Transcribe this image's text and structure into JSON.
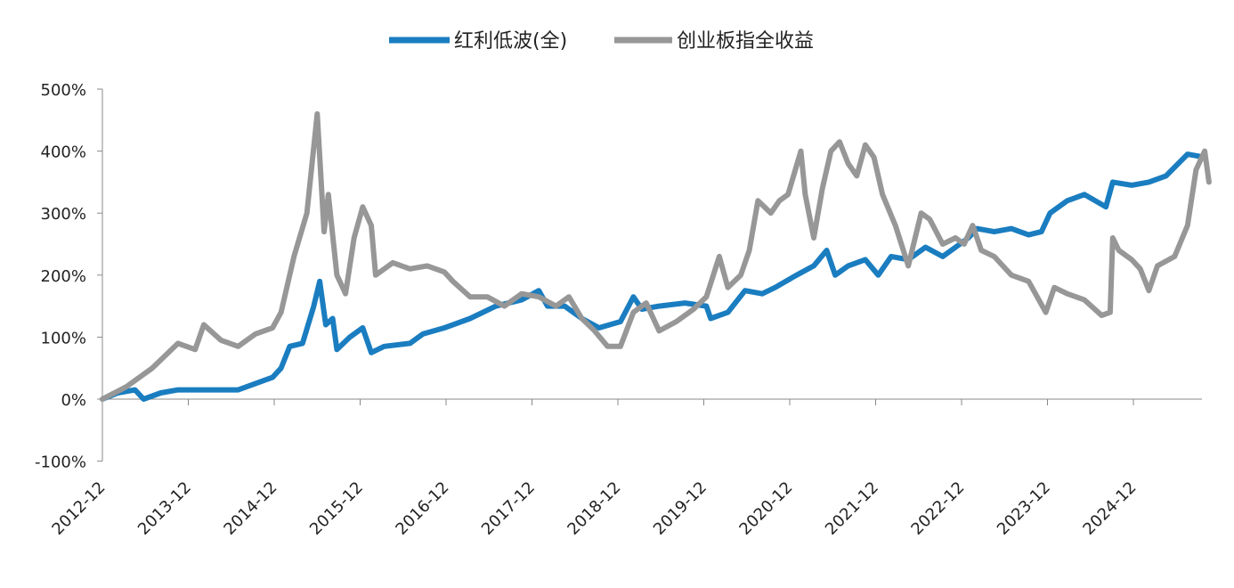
{
  "chart_data": {
    "type": "line",
    "title": "",
    "xlabel": "",
    "ylabel": "",
    "ylim": [
      -100,
      500
    ],
    "xlim": [
      2012.92,
      2025.8
    ],
    "yticks": [
      500,
      400,
      300,
      200,
      100,
      0,
      -100
    ],
    "ytick_labels": [
      "500%",
      "400%",
      "300%",
      "200%",
      "100%",
      "0%",
      "-100%"
    ],
    "xticks": [
      2012.92,
      2013.92,
      2014.92,
      2015.92,
      2016.92,
      2017.92,
      2018.92,
      2019.92,
      2020.92,
      2021.92,
      2022.92,
      2023.92,
      2024.92
    ],
    "xtick_labels": [
      "2012-12",
      "2013-12",
      "2014-12",
      "2015-12",
      "2016-12",
      "2017-12",
      "2018-12",
      "2019-12",
      "2020-12",
      "2021-12",
      "2022-12",
      "2023-12",
      "2024-12"
    ],
    "legend_position": "top-center",
    "grid": false,
    "series": [
      {
        "name": "红利低波(全)",
        "color": "#1a7dc0",
        "points": [
          [
            2012.92,
            0
          ],
          [
            2013.1,
            10
          ],
          [
            2013.3,
            15
          ],
          [
            2013.4,
            0
          ],
          [
            2013.6,
            10
          ],
          [
            2013.8,
            15
          ],
          [
            2014.0,
            15
          ],
          [
            2014.3,
            15
          ],
          [
            2014.5,
            15
          ],
          [
            2014.7,
            25
          ],
          [
            2014.9,
            35
          ],
          [
            2015.0,
            50
          ],
          [
            2015.1,
            85
          ],
          [
            2015.25,
            90
          ],
          [
            2015.38,
            150
          ],
          [
            2015.45,
            190
          ],
          [
            2015.52,
            120
          ],
          [
            2015.6,
            130
          ],
          [
            2015.65,
            80
          ],
          [
            2015.8,
            100
          ],
          [
            2015.95,
            115
          ],
          [
            2016.05,
            75
          ],
          [
            2016.2,
            85
          ],
          [
            2016.5,
            90
          ],
          [
            2016.65,
            105
          ],
          [
            2016.9,
            115
          ],
          [
            2017.2,
            130
          ],
          [
            2017.5,
            150
          ],
          [
            2017.8,
            160
          ],
          [
            2018.0,
            175
          ],
          [
            2018.1,
            150
          ],
          [
            2018.3,
            150
          ],
          [
            2018.5,
            130
          ],
          [
            2018.7,
            115
          ],
          [
            2018.95,
            125
          ],
          [
            2019.1,
            165
          ],
          [
            2019.2,
            145
          ],
          [
            2019.4,
            150
          ],
          [
            2019.7,
            155
          ],
          [
            2019.95,
            150
          ],
          [
            2020.0,
            130
          ],
          [
            2020.2,
            140
          ],
          [
            2020.4,
            175
          ],
          [
            2020.6,
            170
          ],
          [
            2020.75,
            180
          ],
          [
            2021.0,
            200
          ],
          [
            2021.2,
            215
          ],
          [
            2021.35,
            240
          ],
          [
            2021.45,
            200
          ],
          [
            2021.6,
            215
          ],
          [
            2021.8,
            225
          ],
          [
            2021.95,
            200
          ],
          [
            2022.1,
            230
          ],
          [
            2022.3,
            225
          ],
          [
            2022.5,
            245
          ],
          [
            2022.7,
            230
          ],
          [
            2022.9,
            250
          ],
          [
            2023.0,
            260
          ],
          [
            2023.1,
            275
          ],
          [
            2023.3,
            270
          ],
          [
            2023.5,
            275
          ],
          [
            2023.7,
            265
          ],
          [
            2023.85,
            270
          ],
          [
            2023.95,
            300
          ],
          [
            2024.15,
            320
          ],
          [
            2024.35,
            330
          ],
          [
            2024.6,
            310
          ],
          [
            2024.68,
            350
          ],
          [
            2024.9,
            345
          ],
          [
            2025.1,
            350
          ],
          [
            2025.3,
            360
          ],
          [
            2025.55,
            395
          ],
          [
            2025.75,
            390
          ]
        ]
      },
      {
        "name": "创业板指全收益",
        "color": "#979797",
        "points": [
          [
            2012.92,
            0
          ],
          [
            2013.2,
            20
          ],
          [
            2013.5,
            50
          ],
          [
            2013.8,
            90
          ],
          [
            2014.0,
            80
          ],
          [
            2014.1,
            120
          ],
          [
            2014.3,
            95
          ],
          [
            2014.5,
            85
          ],
          [
            2014.7,
            105
          ],
          [
            2014.9,
            115
          ],
          [
            2015.0,
            140
          ],
          [
            2015.15,
            230
          ],
          [
            2015.3,
            300
          ],
          [
            2015.42,
            460
          ],
          [
            2015.5,
            270
          ],
          [
            2015.55,
            330
          ],
          [
            2015.65,
            200
          ],
          [
            2015.75,
            170
          ],
          [
            2015.85,
            260
          ],
          [
            2015.95,
            310
          ],
          [
            2016.05,
            280
          ],
          [
            2016.1,
            200
          ],
          [
            2016.3,
            220
          ],
          [
            2016.5,
            210
          ],
          [
            2016.7,
            215
          ],
          [
            2016.9,
            205
          ],
          [
            2017.0,
            190
          ],
          [
            2017.2,
            165
          ],
          [
            2017.4,
            165
          ],
          [
            2017.6,
            150
          ],
          [
            2017.8,
            170
          ],
          [
            2018.0,
            165
          ],
          [
            2018.2,
            150
          ],
          [
            2018.35,
            165
          ],
          [
            2018.5,
            130
          ],
          [
            2018.65,
            110
          ],
          [
            2018.8,
            85
          ],
          [
            2018.95,
            85
          ],
          [
            2019.1,
            140
          ],
          [
            2019.25,
            155
          ],
          [
            2019.4,
            110
          ],
          [
            2019.6,
            125
          ],
          [
            2019.8,
            145
          ],
          [
            2019.95,
            165
          ],
          [
            2020.1,
            230
          ],
          [
            2020.2,
            180
          ],
          [
            2020.35,
            200
          ],
          [
            2020.45,
            240
          ],
          [
            2020.55,
            320
          ],
          [
            2020.7,
            300
          ],
          [
            2020.8,
            320
          ],
          [
            2020.9,
            330
          ],
          [
            2021.05,
            400
          ],
          [
            2021.1,
            330
          ],
          [
            2021.2,
            260
          ],
          [
            2021.3,
            340
          ],
          [
            2021.4,
            400
          ],
          [
            2021.5,
            415
          ],
          [
            2021.6,
            380
          ],
          [
            2021.7,
            360
          ],
          [
            2021.8,
            410
          ],
          [
            2021.9,
            390
          ],
          [
            2022.0,
            330
          ],
          [
            2022.15,
            280
          ],
          [
            2022.3,
            215
          ],
          [
            2022.45,
            300
          ],
          [
            2022.55,
            290
          ],
          [
            2022.7,
            250
          ],
          [
            2022.85,
            260
          ],
          [
            2022.95,
            250
          ],
          [
            2023.05,
            280
          ],
          [
            2023.15,
            240
          ],
          [
            2023.3,
            230
          ],
          [
            2023.5,
            200
          ],
          [
            2023.7,
            190
          ],
          [
            2023.9,
            140
          ],
          [
            2024.0,
            180
          ],
          [
            2024.15,
            170
          ],
          [
            2024.35,
            160
          ],
          [
            2024.55,
            135
          ],
          [
            2024.65,
            140
          ],
          [
            2024.68,
            260
          ],
          [
            2024.75,
            240
          ],
          [
            2024.9,
            225
          ],
          [
            2025.0,
            210
          ],
          [
            2025.1,
            175
          ],
          [
            2025.2,
            215
          ],
          [
            2025.4,
            230
          ],
          [
            2025.55,
            280
          ],
          [
            2025.65,
            370
          ],
          [
            2025.75,
            400
          ],
          [
            2025.8,
            350
          ]
        ]
      }
    ]
  }
}
